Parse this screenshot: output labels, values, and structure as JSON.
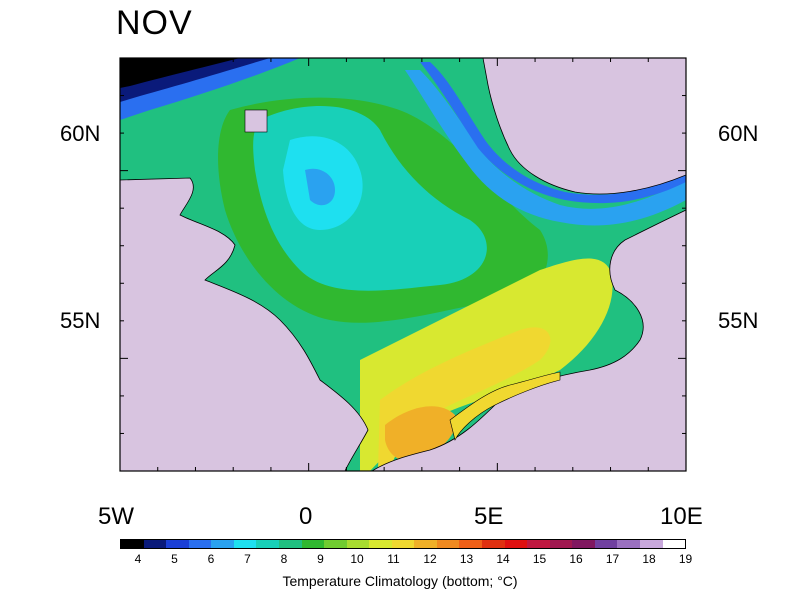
{
  "map": {
    "title": "NOV",
    "extent": {
      "lon_min": -5,
      "lon_max": 10,
      "lat_min": 51,
      "lat_max": 62
    },
    "lat_labels": [
      "60N",
      "55N"
    ],
    "lon_labels": [
      "5W",
      "0",
      "5E",
      "10E"
    ],
    "land_color": "#d8c4e0",
    "coastline_color": "#000000"
  },
  "colorbar": {
    "title": "Temperature Climatology (bottom; °C)",
    "ticks": [
      "4",
      "5",
      "6",
      "7",
      "8",
      "9",
      "10",
      "11",
      "12",
      "13",
      "14",
      "15",
      "16",
      "17",
      "18",
      "19"
    ],
    "colors": [
      "#000000",
      "#0a1a7a",
      "#1b3fd6",
      "#2a6ff0",
      "#2aa2f0",
      "#1ee0f0",
      "#18d0b8",
      "#20c080",
      "#30b830",
      "#70cc30",
      "#a8dc30",
      "#d8e830",
      "#f0d830",
      "#f0b028",
      "#f08a20",
      "#f06018",
      "#e03010",
      "#e01010",
      "#c01840",
      "#a01850",
      "#801860",
      "#7040a0",
      "#9a70c0",
      "#c8a8dc",
      "#ffffff"
    ]
  }
}
